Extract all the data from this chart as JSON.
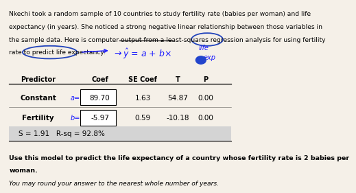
{
  "background_color": "#f5f0e8",
  "para_line1": "Nkechi took a random sample of 10 countries to study fertility rate (babies per woman) and life",
  "para_line2": "expectancy (in years). She noticed a strong negative linear relationship between those variables in",
  "para_line3": "the sample data. Here is computer output from a least-squares regression analysis for using fertility",
  "para_line4": "rate to predict life expectancy:",
  "table_headers": [
    "Predictor",
    "Coef",
    "SE Coef",
    "T",
    "P"
  ],
  "row1": [
    "Constant",
    "89.70",
    "1.63",
    "54.87",
    "0.00"
  ],
  "row2": [
    "Fertility",
    "-5.97",
    "0.59",
    "-10.18",
    "0.00"
  ],
  "footer": "S = 1.91   R-sq = 92.8%",
  "question_bold1": "Use this model to predict the life expectancy of a country whose fertility rate is 2 babies per",
  "question_bold2": "woman.",
  "question_italic": "You may round your answer to the nearest whole number of years.",
  "table_bg": "#d4d4d4",
  "text_color": "#000000",
  "circle_color": "#2244bb",
  "handwriting_color": "#1a1aff",
  "strike_color": "#000000"
}
